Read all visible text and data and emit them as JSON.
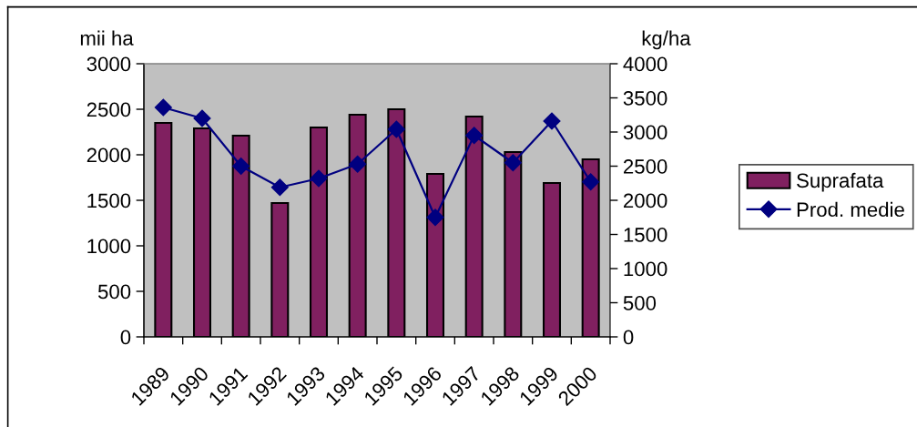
{
  "chart_data": {
    "type": "bar",
    "categories": [
      "1989",
      "1990",
      "1991",
      "1992",
      "1993",
      "1994",
      "1995",
      "1996",
      "1997",
      "1998",
      "1999",
      "2000"
    ],
    "series": [
      {
        "name": "Suprafata",
        "color": "#802060",
        "values": [
          2350,
          2290,
          2210,
          1470,
          2300,
          2440,
          2500,
          1790,
          2420,
          2030,
          1690,
          1950
        ]
      },
      {
        "name": "Prod. medie",
        "type": "line",
        "axis": "y2",
        "color": "#000080",
        "marker": "diamond",
        "line_style": "solid",
        "values": [
          3360,
          3200,
          2500,
          2190,
          2320,
          2530,
          3040,
          1750,
          2950,
          2550,
          3160,
          2270
        ]
      }
    ],
    "ylabel": "mii ha",
    "y2label": "kg/ha",
    "ylim": [
      0,
      3000
    ],
    "yticks": [
      0,
      500,
      1000,
      1500,
      2000,
      2500,
      3000
    ],
    "y2lim": [
      0,
      4000
    ],
    "y2ticks": [
      0,
      500,
      1000,
      1500,
      2000,
      2500,
      3000,
      3500,
      4000
    ],
    "legend": "right"
  }
}
